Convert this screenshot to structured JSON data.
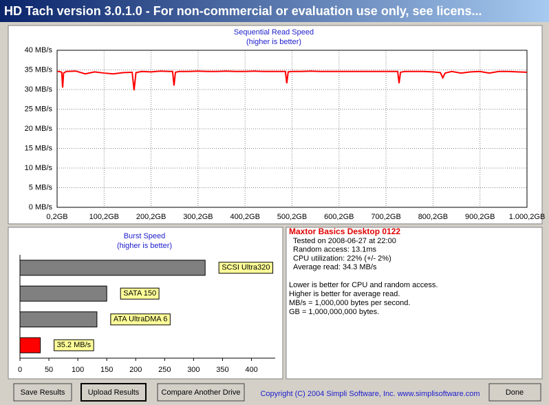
{
  "window": {
    "title": "HD Tach version 3.0.1.0  - For non-commercial or evaluation use only, see licens..."
  },
  "chart_data": [
    {
      "type": "line",
      "title": "Sequential Read Speed",
      "subtitle": "(higher is better)",
      "color": "#ff0000",
      "grid": true,
      "x": [
        0.2,
        5,
        10,
        12,
        14,
        20,
        40,
        60,
        80,
        100,
        120,
        140,
        160,
        164,
        168,
        180,
        200,
        220,
        240,
        246,
        249,
        252,
        260,
        280,
        300,
        320,
        340,
        360,
        380,
        400,
        420,
        440,
        460,
        480,
        486,
        489,
        492,
        500,
        520,
        540,
        560,
        580,
        600,
        620,
        640,
        660,
        680,
        700,
        720,
        725,
        728,
        731,
        740,
        760,
        780,
        800,
        816,
        821,
        826,
        840,
        860,
        880,
        900,
        920,
        940,
        960,
        980,
        1000.2
      ],
      "values": [
        34.6,
        34.6,
        34.4,
        30.5,
        34.2,
        34.6,
        34.7,
        34.0,
        34.5,
        34.2,
        34.0,
        34.3,
        34.4,
        29.8,
        34.3,
        34.6,
        34.5,
        34.7,
        34.6,
        34.6,
        31.0,
        34.4,
        34.6,
        34.6,
        34.7,
        34.6,
        34.6,
        34.7,
        34.6,
        34.6,
        34.7,
        34.6,
        34.6,
        34.6,
        34.6,
        31.6,
        34.5,
        34.6,
        34.6,
        34.7,
        34.6,
        34.6,
        34.6,
        34.6,
        34.6,
        34.6,
        34.6,
        34.6,
        34.6,
        34.6,
        31.6,
        34.4,
        34.6,
        34.6,
        34.6,
        34.5,
        34.3,
        33.0,
        34.2,
        34.6,
        34.2,
        34.5,
        34.6,
        34.2,
        34.6,
        34.6,
        34.5,
        34.4
      ],
      "xlim": [
        0.2,
        1000.2
      ],
      "xticks": [
        {
          "value": 0.2,
          "label": "0,2GB"
        },
        {
          "value": 100.2,
          "label": "100,2GB"
        },
        {
          "value": 200.2,
          "label": "200,2GB"
        },
        {
          "value": 300.2,
          "label": "300,2GB"
        },
        {
          "value": 400.2,
          "label": "400,2GB"
        },
        {
          "value": 500.2,
          "label": "500,2GB"
        },
        {
          "value": 600.2,
          "label": "600,2GB"
        },
        {
          "value": 700.2,
          "label": "700,2GB"
        },
        {
          "value": 800.2,
          "label": "800,2GB"
        },
        {
          "value": 900.2,
          "label": "900,2GB"
        },
        {
          "value": 1000.2,
          "label": "1.000,2GB"
        }
      ],
      "ylim": [
        0,
        40
      ],
      "yticks": [
        {
          "value": 0,
          "label": "0 MB/s"
        },
        {
          "value": 5,
          "label": "5 MB/s"
        },
        {
          "value": 10,
          "label": "10 MB/s"
        },
        {
          "value": 15,
          "label": "15 MB/s"
        },
        {
          "value": 20,
          "label": "20 MB/s"
        },
        {
          "value": 25,
          "label": "25 MB/s"
        },
        {
          "value": 30,
          "label": "30 MB/s"
        },
        {
          "value": 35,
          "label": "35 MB/s"
        },
        {
          "value": 40,
          "label": "40 MB/s"
        }
      ]
    },
    {
      "type": "hbar",
      "title": "Burst Speed",
      "subtitle": "(higher is better)",
      "categories": [
        "SCSI Ultra320",
        "SATA 150",
        "ATA UltraDMA 6",
        null
      ],
      "values": [
        320,
        150,
        133,
        35.2
      ],
      "value_labels": [
        null,
        null,
        null,
        "35.2 MB/s"
      ],
      "colors": [
        "#808080",
        "#808080",
        "#808080",
        "#ff0000"
      ],
      "xlim": [
        0,
        441
      ],
      "xticks": [
        0,
        50,
        100,
        150,
        200,
        250,
        300,
        350,
        400
      ]
    }
  ],
  "drive_info": {
    "name": "Maxtor Basics Desktop 0122",
    "details": [
      "Tested on 2008-06-27 at 22:00",
      "Random access: 13.1ms",
      "CPU utilization: 22% (+/- 2%)",
      "Average read: 34.3 MB/s"
    ],
    "notes": [
      "Lower is better for CPU and random access.",
      "Higher is better for average read.",
      "MB/s = 1,000,000 bytes per second.",
      "GB = 1,000,000,000 bytes."
    ]
  },
  "buttons": [
    "Save Results",
    "Upload Results",
    "Compare Another Drive",
    "Done"
  ],
  "copyright": "Copyright (C) 2004 Simpli Software, Inc. www.simplisoftware.com"
}
